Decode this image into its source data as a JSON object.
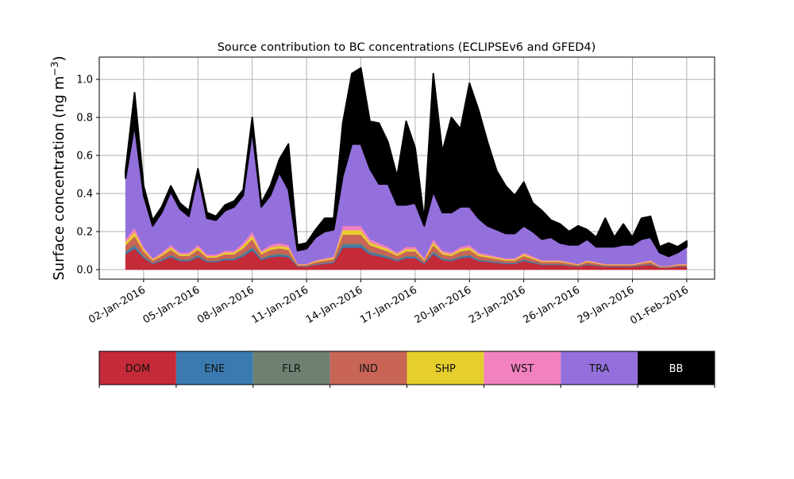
{
  "chart_data": {
    "type": "area",
    "stacked": true,
    "title": "Source contribution to BC concentrations (ECLIPSEv6 and GFED4)",
    "ylabel": "Surface concentration (ng m",
    "ylabel_sup": "−3",
    "ylabel_close": ")",
    "xlabel": "",
    "x_start": "01-Jan-2016",
    "x_step_days": 0.5,
    "xlim_days": [
      -1.45,
      32.54
    ],
    "ylim": [
      -0.05,
      1.117
    ],
    "grid": true,
    "yticks": [
      0.0,
      0.2,
      0.4,
      0.6,
      0.8,
      1.0
    ],
    "ytick_labels": [
      "0.0",
      "0.2",
      "0.4",
      "0.6",
      "0.8",
      "1.0"
    ],
    "xticks_days": [
      1,
      4,
      7,
      10,
      13,
      16,
      19,
      22,
      25,
      28,
      31
    ],
    "xtick_labels": [
      "02-Jan-2016",
      "05-Jan-2016",
      "08-Jan-2016",
      "11-Jan-2016",
      "14-Jan-2016",
      "17-Jan-2016",
      "20-Jan-2016",
      "23-Jan-2016",
      "26-Jan-2016",
      "29-Jan-2016",
      "01-Feb-2016"
    ],
    "legend_placement": "bottom (colorbar)",
    "series": [
      {
        "name": "DOM",
        "color": "#c52a38",
        "values": [
          0.08,
          0.11,
          0.06,
          0.03,
          0.045,
          0.065,
          0.045,
          0.045,
          0.065,
          0.04,
          0.04,
          0.05,
          0.05,
          0.07,
          0.1,
          0.05,
          0.065,
          0.07,
          0.065,
          0.015,
          0.015,
          0.025,
          0.03,
          0.035,
          0.115,
          0.115,
          0.115,
          0.08,
          0.07,
          0.06,
          0.045,
          0.06,
          0.06,
          0.03,
          0.08,
          0.05,
          0.045,
          0.06,
          0.065,
          0.045,
          0.04,
          0.035,
          0.03,
          0.03,
          0.045,
          0.035,
          0.025,
          0.025,
          0.025,
          0.02,
          0.015,
          0.025,
          0.02,
          0.015,
          0.015,
          0.015,
          0.015,
          0.02,
          0.025,
          0.01,
          0.01,
          0.015,
          0.015
        ]
      },
      {
        "name": "ENE",
        "color": "#3b7ab0",
        "values": [
          0.01,
          0.013,
          0.007,
          0.004,
          0.005,
          0.008,
          0.005,
          0.005,
          0.008,
          0.005,
          0.005,
          0.006,
          0.006,
          0.008,
          0.012,
          0.006,
          0.008,
          0.008,
          0.008,
          0.002,
          0.002,
          0.003,
          0.004,
          0.004,
          0.014,
          0.014,
          0.014,
          0.01,
          0.008,
          0.007,
          0.005,
          0.007,
          0.007,
          0.004,
          0.01,
          0.006,
          0.005,
          0.007,
          0.008,
          0.005,
          0.005,
          0.004,
          0.004,
          0.004,
          0.005,
          0.004,
          0.003,
          0.003,
          0.003,
          0.002,
          0.002,
          0.003,
          0.002,
          0.002,
          0.002,
          0.002,
          0.002,
          0.002,
          0.003,
          0.001,
          0.001,
          0.002,
          0.002
        ]
      },
      {
        "name": "FLR",
        "color": "#6e8072",
        "values": [
          0.006,
          0.009,
          0.005,
          0.002,
          0.004,
          0.005,
          0.004,
          0.004,
          0.005,
          0.003,
          0.003,
          0.004,
          0.004,
          0.006,
          0.008,
          0.004,
          0.005,
          0.006,
          0.005,
          0.001,
          0.001,
          0.002,
          0.002,
          0.003,
          0.009,
          0.009,
          0.009,
          0.006,
          0.006,
          0.005,
          0.004,
          0.005,
          0.005,
          0.002,
          0.006,
          0.004,
          0.004,
          0.005,
          0.005,
          0.004,
          0.003,
          0.003,
          0.002,
          0.002,
          0.004,
          0.003,
          0.002,
          0.002,
          0.002,
          0.002,
          0.001,
          0.002,
          0.002,
          0.001,
          0.001,
          0.001,
          0.001,
          0.002,
          0.002,
          0.001,
          0.001,
          0.001,
          0.001
        ]
      },
      {
        "name": "IND",
        "color": "#c86556",
        "values": [
          0.032,
          0.044,
          0.024,
          0.012,
          0.018,
          0.026,
          0.018,
          0.018,
          0.026,
          0.016,
          0.016,
          0.02,
          0.02,
          0.028,
          0.04,
          0.02,
          0.026,
          0.028,
          0.026,
          0.006,
          0.006,
          0.01,
          0.012,
          0.014,
          0.046,
          0.046,
          0.046,
          0.032,
          0.028,
          0.024,
          0.018,
          0.024,
          0.024,
          0.012,
          0.032,
          0.02,
          0.018,
          0.024,
          0.026,
          0.018,
          0.016,
          0.014,
          0.012,
          0.012,
          0.018,
          0.014,
          0.01,
          0.01,
          0.01,
          0.008,
          0.006,
          0.01,
          0.008,
          0.006,
          0.006,
          0.006,
          0.006,
          0.008,
          0.01,
          0.004,
          0.004,
          0.006,
          0.006
        ]
      },
      {
        "name": "SHP",
        "color": "#e6cf2c",
        "values": [
          0.016,
          0.022,
          0.012,
          0.006,
          0.009,
          0.013,
          0.009,
          0.009,
          0.013,
          0.008,
          0.008,
          0.01,
          0.01,
          0.014,
          0.02,
          0.01,
          0.013,
          0.014,
          0.013,
          0.003,
          0.003,
          0.005,
          0.006,
          0.007,
          0.023,
          0.023,
          0.023,
          0.016,
          0.014,
          0.012,
          0.009,
          0.012,
          0.012,
          0.006,
          0.016,
          0.01,
          0.009,
          0.012,
          0.013,
          0.009,
          0.008,
          0.007,
          0.006,
          0.006,
          0.009,
          0.007,
          0.005,
          0.005,
          0.005,
          0.004,
          0.003,
          0.005,
          0.004,
          0.003,
          0.003,
          0.003,
          0.003,
          0.004,
          0.005,
          0.002,
          0.002,
          0.003,
          0.003
        ]
      },
      {
        "name": "WST",
        "color": "#f181bf",
        "values": [
          0.016,
          0.022,
          0.012,
          0.006,
          0.009,
          0.013,
          0.009,
          0.009,
          0.013,
          0.008,
          0.008,
          0.01,
          0.01,
          0.014,
          0.02,
          0.01,
          0.013,
          0.014,
          0.013,
          0.003,
          0.003,
          0.005,
          0.006,
          0.007,
          0.023,
          0.023,
          0.023,
          0.016,
          0.014,
          0.012,
          0.009,
          0.012,
          0.012,
          0.006,
          0.016,
          0.01,
          0.009,
          0.012,
          0.013,
          0.009,
          0.008,
          0.007,
          0.006,
          0.006,
          0.009,
          0.007,
          0.005,
          0.005,
          0.005,
          0.004,
          0.003,
          0.005,
          0.004,
          0.003,
          0.003,
          0.003,
          0.003,
          0.004,
          0.005,
          0.002,
          0.002,
          0.003,
          0.003
        ]
      },
      {
        "name": "TRA",
        "color": "#9370db",
        "values": [
          0.32,
          0.54,
          0.27,
          0.17,
          0.21,
          0.28,
          0.23,
          0.19,
          0.37,
          0.19,
          0.18,
          0.21,
          0.23,
          0.25,
          0.53,
          0.23,
          0.26,
          0.37,
          0.29,
          0.07,
          0.08,
          0.12,
          0.14,
          0.14,
          0.26,
          0.43,
          0.43,
          0.37,
          0.31,
          0.33,
          0.25,
          0.22,
          0.23,
          0.17,
          0.25,
          0.2,
          0.21,
          0.21,
          0.2,
          0.18,
          0.15,
          0.14,
          0.13,
          0.13,
          0.14,
          0.13,
          0.11,
          0.12,
          0.09,
          0.09,
          0.1,
          0.11,
          0.08,
          0.09,
          0.09,
          0.1,
          0.1,
          0.12,
          0.12,
          0.07,
          0.05,
          0.06,
          0.09
        ]
      },
      {
        "name": "BB",
        "color": "#000000",
        "values": [
          0.04,
          0.17,
          0.05,
          0.03,
          0.03,
          0.03,
          0.03,
          0.03,
          0.03,
          0.03,
          0.02,
          0.03,
          0.03,
          0.03,
          0.07,
          0.02,
          0.05,
          0.07,
          0.24,
          0.03,
          0.03,
          0.04,
          0.07,
          0.06,
          0.28,
          0.37,
          0.4,
          0.25,
          0.32,
          0.22,
          0.15,
          0.44,
          0.29,
          0.03,
          0.62,
          0.32,
          0.5,
          0.41,
          0.65,
          0.57,
          0.44,
          0.31,
          0.25,
          0.2,
          0.23,
          0.15,
          0.15,
          0.09,
          0.1,
          0.07,
          0.1,
          0.05,
          0.05,
          0.15,
          0.05,
          0.11,
          0.04,
          0.11,
          0.11,
          0.03,
          0.07,
          0.03,
          0.03
        ]
      }
    ]
  }
}
